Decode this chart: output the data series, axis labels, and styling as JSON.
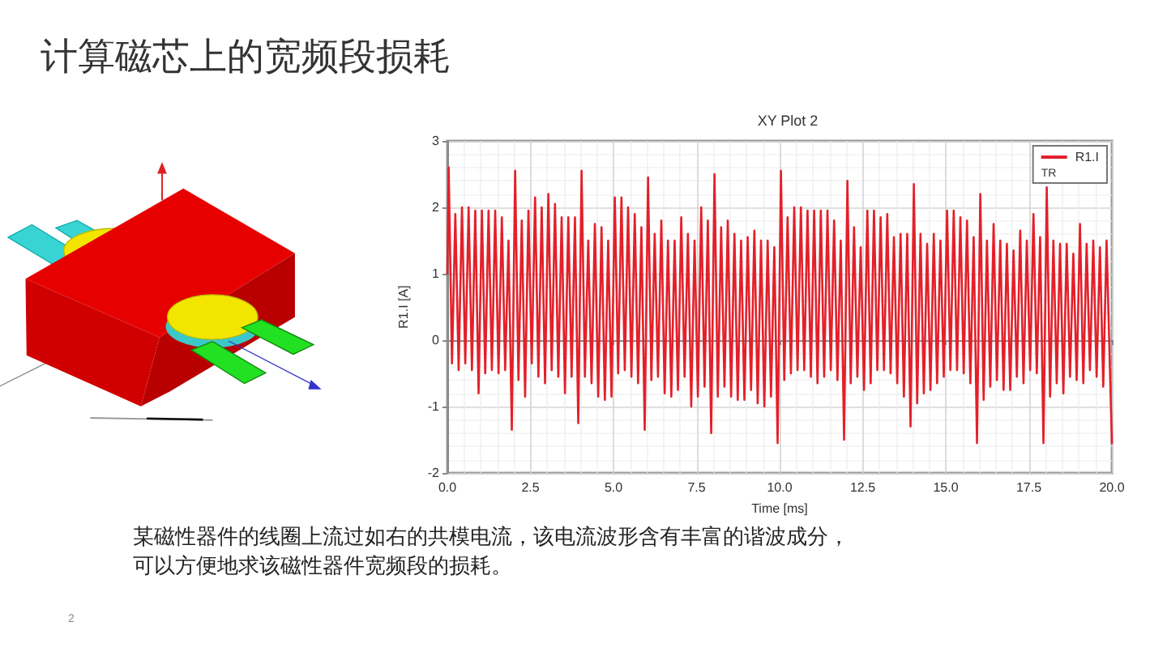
{
  "chart_data": {
    "type": "line",
    "title": "计算磁芯上的宽频段损耗",
    "subtitle": "XY Plot 2",
    "xlabel": "Time [ms]",
    "ylabel": "R1.I [A]",
    "legend_title": "TR",
    "annotations": [
      "某磁性器件的线圈上流过如右的共模电流，该电流波形含有丰富的谐波成分，可以方便地求该磁性器件宽频段的损耗。",
      "2"
    ],
    "x": [
      0,
      0.04,
      0.14,
      0.24,
      0.34,
      0.44,
      0.54,
      0.64,
      0.74,
      0.84,
      0.94,
      1.04,
      1.14,
      1.24,
      1.34,
      1.44,
      1.54,
      1.64,
      1.74,
      1.84,
      1.94,
      2.04,
      2.14,
      2.24,
      2.34,
      2.44,
      2.54,
      2.64,
      2.74,
      2.84,
      2.94,
      3.04,
      3.14,
      3.24,
      3.34,
      3.44,
      3.54,
      3.64,
      3.74,
      3.84,
      3.94,
      4.04,
      4.14,
      4.24,
      4.34,
      4.44,
      4.54,
      4.64,
      4.74,
      4.84,
      4.94,
      5.04,
      5.14,
      5.24,
      5.34,
      5.44,
      5.54,
      5.64,
      5.74,
      5.84,
      5.94,
      6.04,
      6.14,
      6.24,
      6.34,
      6.44,
      6.54,
      6.64,
      6.74,
      6.84,
      6.94,
      7.04,
      7.14,
      7.24,
      7.34,
      7.44,
      7.54,
      7.64,
      7.74,
      7.84,
      7.94,
      8.04,
      8.14,
      8.24,
      8.34,
      8.44,
      8.54,
      8.64,
      8.74,
      8.84,
      8.94,
      9.04,
      9.14,
      9.24,
      9.34,
      9.44,
      9.54,
      9.64,
      9.74,
      9.84,
      9.94,
      10.04,
      10.14,
      10.24,
      10.34,
      10.44,
      10.54,
      10.64,
      10.74,
      10.84,
      10.94,
      11.04,
      11.14,
      11.24,
      11.34,
      11.44,
      11.54,
      11.64,
      11.74,
      11.84,
      11.94,
      12.04,
      12.14,
      12.24,
      12.34,
      12.44,
      12.54,
      12.64,
      12.74,
      12.84,
      12.94,
      13.04,
      13.14,
      13.24,
      13.34,
      13.44,
      13.54,
      13.64,
      13.74,
      13.84,
      13.94,
      14.04,
      14.14,
      14.24,
      14.34,
      14.44,
      14.54,
      14.64,
      14.74,
      14.84,
      14.94,
      15.04,
      15.14,
      15.24,
      15.34,
      15.44,
      15.54,
      15.64,
      15.74,
      15.84,
      15.94,
      16.04,
      16.14,
      16.24,
      16.34,
      16.44,
      16.54,
      16.64,
      16.74,
      16.84,
      16.94,
      17.04,
      17.14,
      17.24,
      17.34,
      17.44,
      17.54,
      17.64,
      17.74,
      17.84,
      17.94,
      18.04,
      18.14,
      18.24,
      18.34,
      18.44,
      18.54,
      18.64,
      18.74,
      18.84,
      18.94,
      19.04,
      19.14,
      19.24,
      19.34,
      19.44,
      19.54,
      19.64,
      19.74,
      19.84,
      20
    ],
    "series": [
      {
        "name": "R1.I",
        "color": "#e3202a",
        "values": [
          1.0,
          2.6,
          -0.35,
          1.9,
          -0.45,
          2.0,
          -0.35,
          2.0,
          -0.45,
          1.95,
          -0.8,
          1.95,
          -0.5,
          1.95,
          -0.45,
          1.95,
          -0.5,
          1.85,
          -0.45,
          1.5,
          -1.35,
          2.55,
          -0.6,
          1.8,
          -0.85,
          1.95,
          -0.35,
          2.15,
          -0.55,
          2.0,
          -0.65,
          2.2,
          -0.45,
          2.05,
          -0.55,
          1.85,
          -0.8,
          1.85,
          -0.55,
          1.85,
          -1.25,
          2.55,
          -0.55,
          1.5,
          -0.65,
          1.75,
          -0.85,
          1.7,
          -0.9,
          1.5,
          -0.85,
          2.15,
          -0.5,
          2.15,
          -0.45,
          2.0,
          -0.55,
          1.9,
          -0.65,
          1.7,
          -1.35,
          2.45,
          -0.6,
          1.6,
          -0.55,
          1.8,
          -0.8,
          1.5,
          -0.85,
          1.5,
          -0.75,
          1.85,
          -0.55,
          1.6,
          -1.0,
          1.5,
          -0.85,
          2.0,
          -0.7,
          1.8,
          -1.4,
          2.5,
          -0.85,
          1.7,
          -0.7,
          1.8,
          -0.85,
          1.6,
          -0.9,
          1.5,
          -0.9,
          1.55,
          -0.75,
          1.65,
          -0.95,
          1.5,
          -1.0,
          1.5,
          -0.85,
          1.4,
          -1.55,
          2.55,
          -0.6,
          1.85,
          -0.5,
          2.0,
          -0.45,
          2.0,
          -0.45,
          1.95,
          -0.55,
          1.95,
          -0.65,
          1.95,
          -0.55,
          1.95,
          -0.45,
          1.8,
          -0.6,
          1.5,
          -1.5,
          2.4,
          -0.65,
          1.7,
          -0.55,
          1.4,
          -0.75,
          1.95,
          -0.65,
          1.95,
          -0.45,
          1.85,
          -0.45,
          1.9,
          -0.5,
          1.55,
          -0.65,
          1.6,
          -0.85,
          1.6,
          -1.3,
          2.35,
          -0.95,
          1.6,
          -0.8,
          1.45,
          -0.75,
          1.6,
          -0.65,
          1.5,
          -0.55,
          1.95,
          -0.45,
          1.95,
          -0.45,
          1.85,
          -0.5,
          1.8,
          -0.65,
          1.55,
          -1.55,
          2.2,
          -0.9,
          1.5,
          -0.7,
          1.75,
          -0.6,
          1.5,
          -0.75,
          1.45,
          -0.75,
          1.35,
          -0.55,
          1.65,
          -0.65,
          1.5,
          -0.45,
          1.9,
          -0.5,
          1.55,
          -1.55,
          2.3,
          -0.85,
          1.5,
          -0.65,
          1.45,
          -0.8,
          1.45,
          -0.55,
          1.3,
          -0.6,
          1.75,
          -0.65,
          1.45,
          -0.45,
          1.5,
          -0.55,
          1.4,
          -0.7,
          1.5,
          -1.55
        ]
      }
    ],
    "xlim": [
      0,
      20
    ],
    "xticks": [
      {
        "value": 0,
        "label": "0.0"
      },
      2.5,
      {
        "value": 5,
        "label": "5.0"
      },
      7.5,
      {
        "value": 10,
        "label": "10.0"
      },
      12.5,
      {
        "value": 15,
        "label": "15.0"
      },
      17.5,
      {
        "value": 20,
        "label": "20.0"
      }
    ],
    "ylim": [
      -2,
      3
    ],
    "yticks": [
      -2,
      -1,
      0,
      1,
      2,
      3
    ],
    "grid": true,
    "legend": "top right",
    "line_style": "solid"
  }
}
